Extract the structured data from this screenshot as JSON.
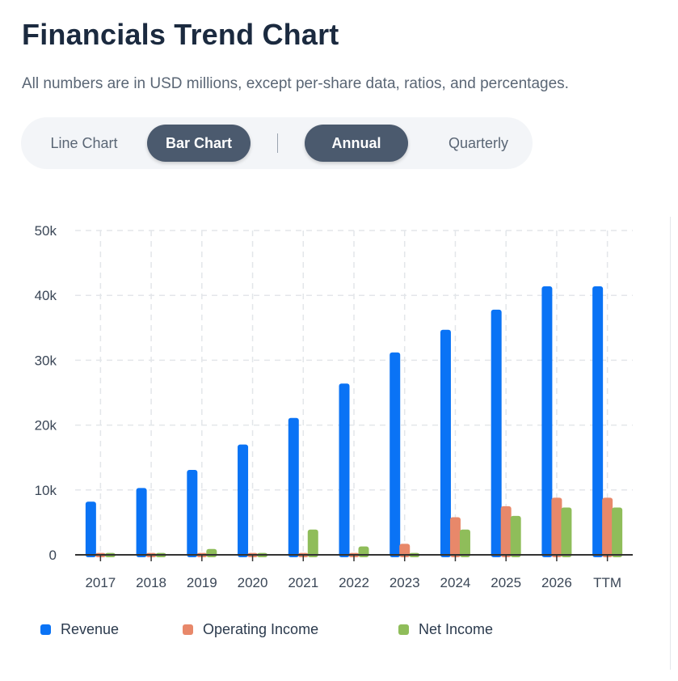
{
  "header": {
    "title": "Financials Trend Chart",
    "subtitle": "All numbers are in USD millions, except per-share data, ratios, and percentages."
  },
  "controls": {
    "chart_type": [
      {
        "label": "Line Chart",
        "active": false
      },
      {
        "label": "Bar Chart",
        "active": true
      }
    ],
    "period": [
      {
        "label": "Annual",
        "active": true
      },
      {
        "label": "Quarterly",
        "active": false
      }
    ]
  },
  "colors": {
    "revenue": "#0a73f5",
    "operating_income": "#e8886a",
    "net_income": "#8fbd5a",
    "grid": "#e3e6ea",
    "axis": "#333333"
  },
  "chart_data": {
    "type": "bar",
    "title": "",
    "xlabel": "",
    "ylabel": "",
    "categories": [
      "2017",
      "2018",
      "2019",
      "2020",
      "2021",
      "2022",
      "2023",
      "2024",
      "2025",
      "2026",
      "TTM"
    ],
    "ylim": [
      0,
      50000
    ],
    "yticks": [
      0,
      10000,
      20000,
      30000,
      40000,
      50000
    ],
    "ytick_labels": [
      "0",
      "10k",
      "20k",
      "30k",
      "40k",
      "50k"
    ],
    "grid": true,
    "legend_position": "bottom-left",
    "series": [
      {
        "name": "Revenue",
        "color_key": "revenue",
        "values": [
          8200,
          10300,
          13100,
          17000,
          21100,
          26400,
          31200,
          34700,
          37800,
          41400,
          41400
        ]
      },
      {
        "name": "Operating Income",
        "color_key": "operating_income",
        "values": [
          300,
          300,
          300,
          300,
          300,
          300,
          1700,
          5800,
          7500,
          8800,
          8800
        ]
      },
      {
        "name": "Net Income",
        "color_key": "net_income",
        "values": [
          300,
          300,
          900,
          300,
          3900,
          1300,
          300,
          3900,
          6000,
          7300,
          7300
        ]
      }
    ]
  }
}
